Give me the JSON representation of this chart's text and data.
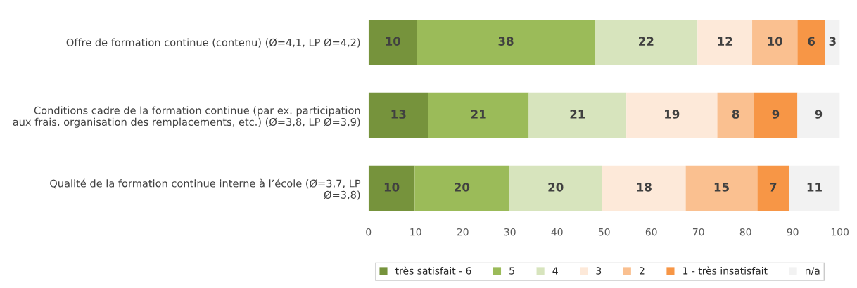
{
  "chart_data": {
    "type": "bar",
    "orientation": "horizontal",
    "stacked": true,
    "categories": [
      "Offre de formation continue (contenu) (Ø=4,1, LP Ø=4,2)",
      "Conditions cadre de la formation continue (par ex. participation\naux frais, organisation des remplacements, etc.) (Ø=3,8, LP Ø=3,9)",
      "Qualité de la formation continue interne à l’école (Ø=3,7, LP\nØ=3,8)"
    ],
    "series": [
      {
        "name": "très satisfait - 6",
        "color": "#76933c",
        "values": [
          10.3,
          12.7,
          9.8
        ],
        "value_labels": [
          "10",
          "13",
          "10"
        ]
      },
      {
        "name": "5",
        "color": "#9bbb59",
        "values": [
          37.7,
          21.3,
          20.0
        ],
        "value_labels": [
          "38",
          "21",
          "20"
        ]
      },
      {
        "name": "4",
        "color": "#d7e4bd",
        "values": [
          21.8,
          20.7,
          19.8
        ],
        "value_labels": [
          "22",
          "21",
          "20"
        ]
      },
      {
        "name": "3",
        "color": "#fde9d9",
        "values": [
          11.6,
          19.3,
          17.7
        ],
        "value_labels": [
          "12",
          "19",
          "18"
        ]
      },
      {
        "name": "2",
        "color": "#fac090",
        "values": [
          9.6,
          7.8,
          15.2
        ],
        "value_labels": [
          "10",
          "8",
          "15"
        ]
      },
      {
        "name": "1 - très insatisfait",
        "color": "#f79646",
        "values": [
          5.9,
          9.2,
          6.7
        ],
        "value_labels": [
          "6",
          "9",
          "7"
        ]
      },
      {
        "name": "n/a",
        "color": "#f2f2f2",
        "values": [
          3.1,
          9.0,
          10.8
        ],
        "value_labels": [
          "3",
          "9",
          "11"
        ]
      }
    ],
    "xlim": [
      0,
      100
    ],
    "xticks": [
      0,
      10,
      20,
      30,
      40,
      50,
      60,
      70,
      80,
      90,
      100
    ],
    "grid": false,
    "legend": "bottom"
  }
}
